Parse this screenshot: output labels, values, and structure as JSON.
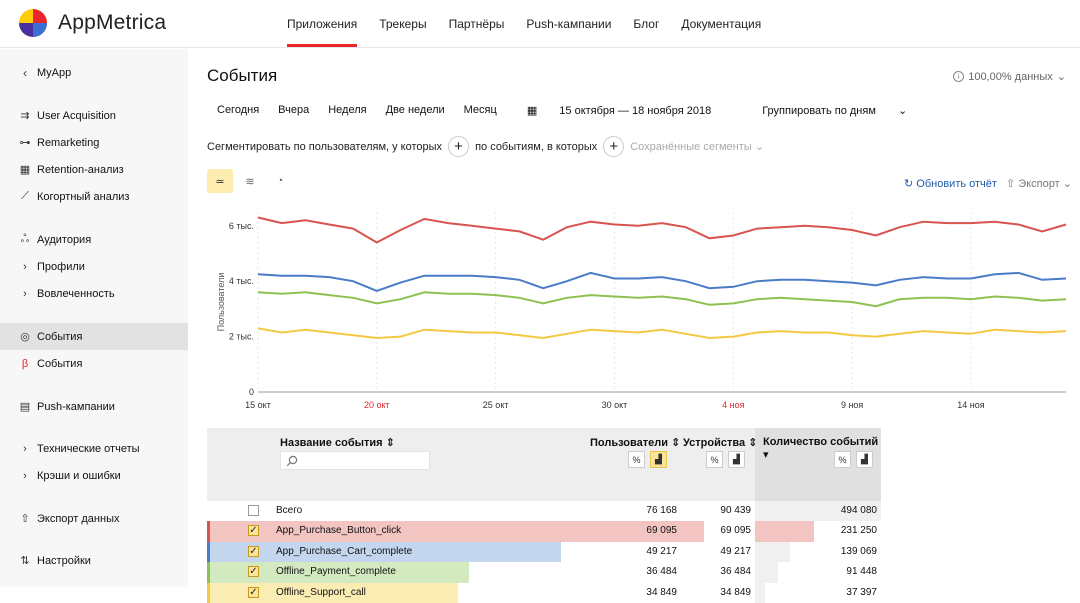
{
  "app": {
    "name": "AppMetrica"
  },
  "nav": {
    "items": [
      {
        "label": "Приложения",
        "active": true
      },
      {
        "label": "Трекеры"
      },
      {
        "label": "Партнёры"
      },
      {
        "label": "Push-кампании"
      },
      {
        "label": "Блог"
      },
      {
        "label": "Документация"
      }
    ]
  },
  "sidebar": {
    "back_label": "MyApp",
    "items": [
      {
        "label": "User Acquisition",
        "icon": "acquisition-icon"
      },
      {
        "label": "Remarketing",
        "icon": "remarketing-icon"
      },
      {
        "label": "Retention-анализ",
        "icon": "retention-icon"
      },
      {
        "label": "Когортный анализ",
        "icon": "cohort-icon"
      },
      {
        "label": "Аудитория",
        "icon": "audience-icon"
      },
      {
        "label": "Профили",
        "icon": "chevron-right-icon"
      },
      {
        "label": "Вовлеченность",
        "icon": "chevron-right-icon"
      },
      {
        "label": "События",
        "icon": "events-icon",
        "active": true
      },
      {
        "label": "События",
        "icon": "beta-icon"
      },
      {
        "label": "Push-кампании",
        "icon": "push-icon"
      },
      {
        "label": "Технические отчеты",
        "icon": "chevron-right-icon"
      },
      {
        "label": "Крэши и ошибки",
        "icon": "chevron-right-icon"
      },
      {
        "label": "Экспорт данных",
        "icon": "export-icon"
      },
      {
        "label": "Настройки",
        "icon": "settings-icon"
      }
    ]
  },
  "page": {
    "title": "События",
    "data_percent": "100,00% данных",
    "periods": [
      "Сегодня",
      "Вчера",
      "Неделя",
      "Две недели",
      "Месяц"
    ],
    "date_range": "15 октября — 18 ноября 2018",
    "group_by": "Группировать по дням",
    "segment_users": "Сегментировать по пользователям, у которых",
    "segment_events": "по событиям, в которых",
    "saved_segments": "Сохранённые сегменты",
    "refresh_label": "Обновить отчёт",
    "export_label": "Экспорт"
  },
  "colors": {
    "red": "#d9534f",
    "blue": "#4a7cc7",
    "green": "#8cc152",
    "yellow": "#f5c842",
    "accent": "#e8262c"
  },
  "chart_data": {
    "type": "line",
    "ylabel": "Пользователи",
    "yticks": [
      "0",
      "2 тыс.",
      "4 тыс.",
      "6 тыс."
    ],
    "ylim": [
      0,
      6500
    ],
    "x_tick_labels": [
      "15 окт",
      "20 окт",
      "25 окт",
      "30 окт",
      "4 ноя",
      "9 ноя",
      "14 ноя"
    ],
    "x_tick_weekend": [
      false,
      true,
      false,
      false,
      true,
      false,
      false
    ],
    "grid": true,
    "series": [
      {
        "color": "#d9534f",
        "values": [
          6300,
          6100,
          6200,
          6050,
          5900,
          5400,
          5850,
          6250,
          6100,
          6000,
          5900,
          5800,
          5500,
          5950,
          6150,
          6050,
          6000,
          6100,
          5950,
          5550,
          5650,
          5900,
          5950,
          6000,
          5950,
          5850,
          5650,
          5950,
          6150,
          6100,
          6100,
          6150,
          6050,
          5800,
          6050
        ]
      },
      {
        "color": "#4a7cc7",
        "values": [
          4250,
          4200,
          4200,
          4150,
          4000,
          3650,
          3950,
          4200,
          4200,
          4200,
          4150,
          4050,
          3750,
          4000,
          4300,
          4100,
          4100,
          4150,
          4000,
          3750,
          3800,
          4000,
          4050,
          4050,
          4000,
          3950,
          3850,
          4050,
          4150,
          4100,
          4100,
          4250,
          4300,
          4050,
          4100
        ]
      },
      {
        "color": "#8cc152",
        "values": [
          3600,
          3550,
          3600,
          3500,
          3400,
          3200,
          3350,
          3600,
          3550,
          3550,
          3500,
          3400,
          3200,
          3400,
          3500,
          3450,
          3400,
          3450,
          3350,
          3150,
          3200,
          3350,
          3400,
          3350,
          3300,
          3250,
          3100,
          3350,
          3400,
          3400,
          3350,
          3450,
          3400,
          3300,
          3350
        ]
      },
      {
        "color": "#f5c842",
        "values": [
          2300,
          2150,
          2250,
          2150,
          2050,
          1950,
          2000,
          2250,
          2200,
          2150,
          2150,
          2050,
          1950,
          2100,
          2250,
          2200,
          2150,
          2250,
          2100,
          1950,
          2000,
          2150,
          2200,
          2150,
          2150,
          2050,
          2000,
          2100,
          2200,
          2150,
          2100,
          2250,
          2200,
          2150,
          2200
        ]
      }
    ]
  },
  "table": {
    "headers": {
      "name": "Название события ⇕",
      "users": "Пользователи ⇕",
      "devices": "Устройства ⇕",
      "count": "Количество событий ▾"
    },
    "rows": [
      {
        "name": "Всего",
        "users": "76 168",
        "devices": "90 439",
        "count": "494 080",
        "checked": false,
        "color": "",
        "bar_frac": 0,
        "count_frac": 1.0
      },
      {
        "name": "App_Purchase_Button_click",
        "users": "69 095",
        "devices": "69 095",
        "count": "231 250",
        "checked": true,
        "color": "#f2c4c2",
        "stripe": "#d9534f",
        "bar_frac": 0.907,
        "count_frac": 0.468
      },
      {
        "name": "App_Purchase_Cart_complete",
        "users": "49 217",
        "devices": "49 217",
        "count": "139 069",
        "checked": true,
        "color": "#c3d6ee",
        "stripe": "#4a7cc7",
        "bar_frac": 0.646,
        "count_frac": 0.281
      },
      {
        "name": "Offline_Payment_complete",
        "users": "36 484",
        "devices": "36 484",
        "count": "91 448",
        "checked": true,
        "color": "#d3eac0",
        "stripe": "#8cc152",
        "bar_frac": 0.479,
        "count_frac": 0.185
      },
      {
        "name": "Offline_Support_call",
        "users": "34 849",
        "devices": "34 849",
        "count": "37 397",
        "checked": true,
        "color": "#fbecb4",
        "stripe": "#f5c842",
        "bar_frac": 0.458,
        "count_frac": 0.076
      }
    ]
  }
}
